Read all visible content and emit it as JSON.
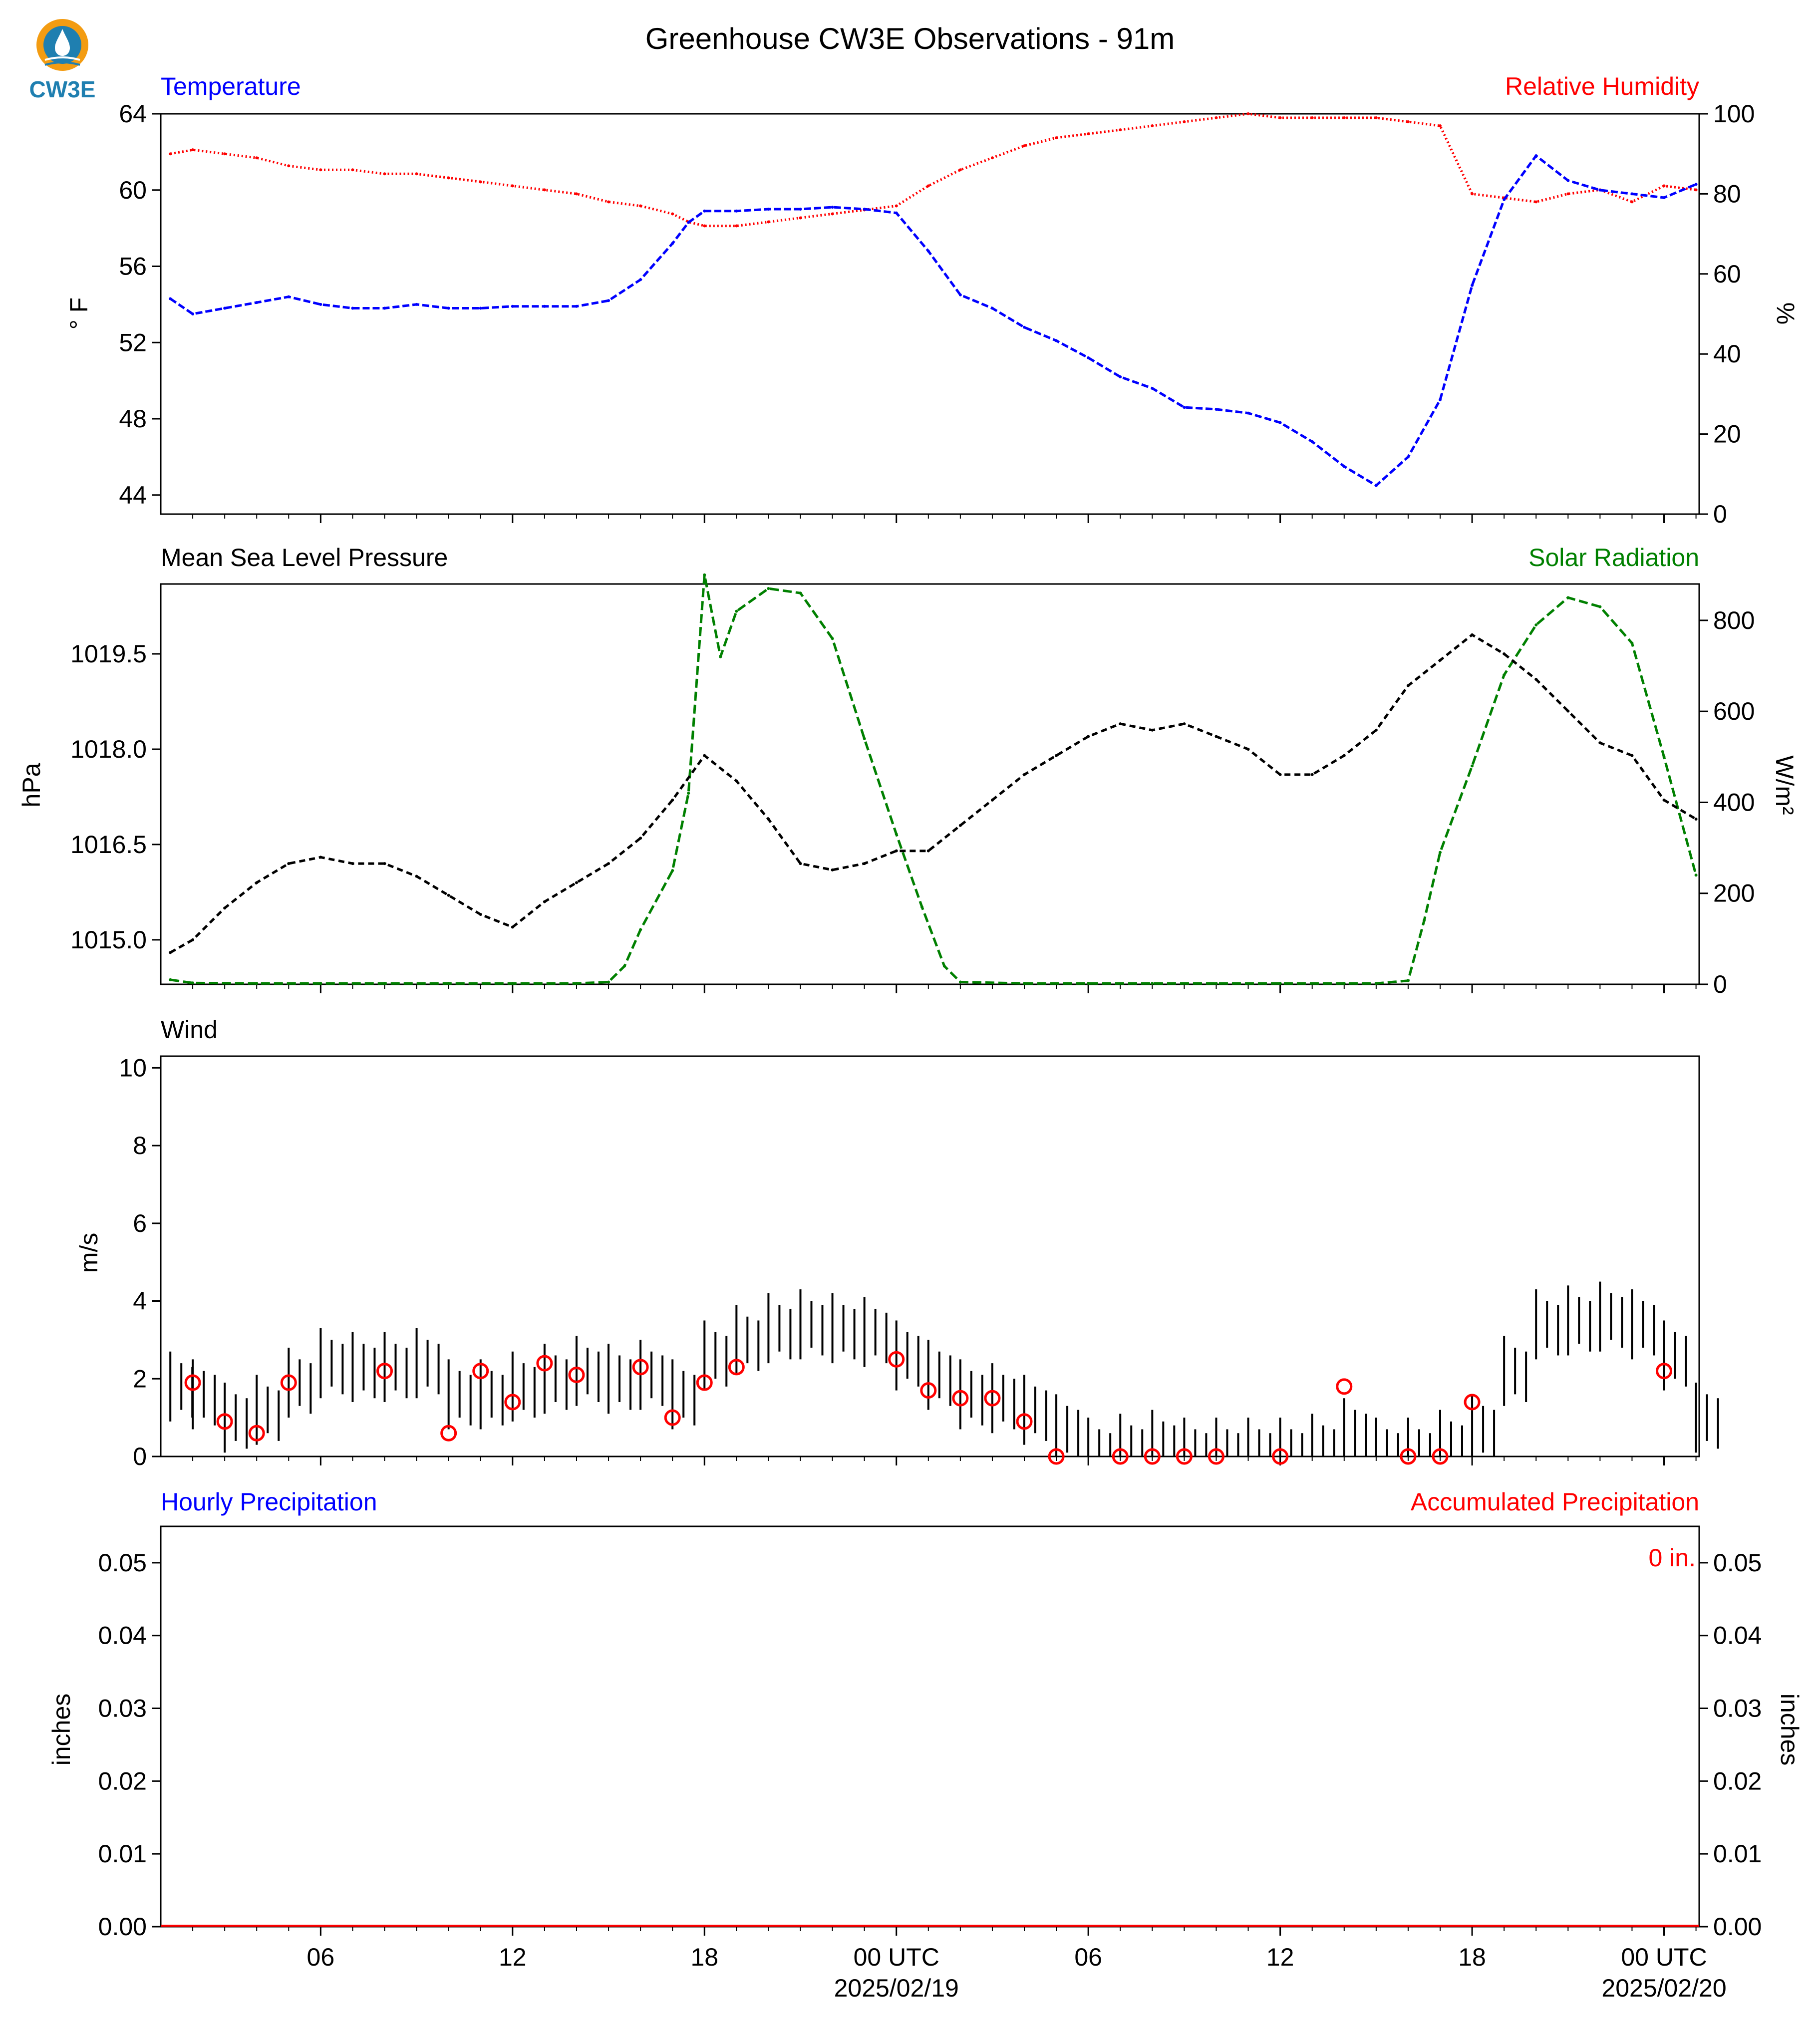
{
  "figure": {
    "title": "Greenhouse CW3E Observations - 91m",
    "logo_text": "CW3E"
  },
  "colors": {
    "temperature": "#0000ff",
    "humidity": "#ff0000",
    "pressure": "#000000",
    "solar": "#008000",
    "wind": "#000000",
    "wind_obs": "#ff0000",
    "accum": "#ff0000"
  },
  "x_axis": {
    "ticks": [
      "06",
      "12",
      "18",
      "00 UTC",
      "06",
      "12",
      "18",
      "00 UTC"
    ],
    "dates": [
      "2025/02/19",
      "2025/02/20"
    ],
    "unit": "hours since 2025-02-18 00 UTC",
    "range": [
      1.0,
      49.1
    ],
    "tick_hours": [
      6,
      12,
      18,
      24,
      30,
      36,
      42,
      48
    ]
  },
  "panels": {
    "temp_rh": {
      "left_label": "Temperature",
      "right_label": "Relative Humidity",
      "left_unit": "° F",
      "right_unit": "%",
      "left_ticks": [
        "44",
        "48",
        "52",
        "56",
        "60",
        "64"
      ],
      "right_ticks": [
        "0",
        "20",
        "40",
        "60",
        "80",
        "100"
      ]
    },
    "pressure_solar": {
      "left_label": "Mean Sea Level Pressure",
      "right_label": "Solar Radiation",
      "left_unit": "hPa",
      "right_unit": "W/m²",
      "left_ticks": [
        "1015.0",
        "1016.5",
        "1018.0",
        "1019.5"
      ],
      "right_ticks": [
        "0",
        "200",
        "400",
        "600",
        "800"
      ]
    },
    "wind": {
      "left_label": "Wind",
      "left_unit": "m/s",
      "left_ticks": [
        "0",
        "2",
        "4",
        "6",
        "8",
        "10"
      ]
    },
    "precip": {
      "left_label": "Hourly Precipitation",
      "right_label": "Accumulated Precipitation",
      "left_unit": "inches",
      "right_unit": "inches",
      "ticks": [
        "0.00",
        "0.01",
        "0.02",
        "0.03",
        "0.04",
        "0.05"
      ],
      "accum_text": "0 in."
    }
  },
  "chart_data": [
    {
      "type": "line",
      "x_unit": "hours since 2025-02-18 00 UTC",
      "series": [
        {
          "name": "Temperature",
          "axis": "left",
          "x": [
            1.3,
            2,
            3,
            4,
            5,
            6,
            7,
            8,
            9,
            10,
            11,
            12,
            13,
            14,
            15,
            16,
            17,
            17.5,
            18,
            19,
            20,
            21,
            22,
            23,
            24,
            25,
            26,
            27,
            28,
            29,
            30,
            31,
            32,
            33,
            34,
            35,
            36,
            37,
            38,
            39,
            40,
            41,
            42,
            43,
            44,
            45,
            46,
            47,
            48,
            49
          ],
          "y": [
            54.3,
            53.5,
            53.8,
            54.1,
            54.4,
            54.0,
            53.8,
            53.8,
            54.0,
            53.8,
            53.8,
            53.9,
            53.9,
            53.9,
            54.2,
            55.3,
            57.2,
            58.3,
            58.9,
            58.9,
            59.0,
            59.0,
            59.1,
            59.0,
            58.8,
            56.8,
            54.5,
            53.8,
            52.8,
            52.1,
            51.2,
            50.2,
            49.6,
            48.6,
            48.5,
            48.3,
            47.8,
            46.8,
            45.5,
            44.5,
            46.0,
            49.0,
            55.0,
            59.5,
            61.8,
            60.5,
            60.0,
            59.8,
            59.6,
            60.3
          ]
        },
        {
          "name": "Relative Humidity",
          "axis": "right",
          "x": [
            1.3,
            2,
            3,
            4,
            5,
            6,
            7,
            8,
            9,
            10,
            11,
            12,
            13,
            14,
            15,
            16,
            17,
            17.5,
            18,
            19,
            20,
            21,
            22,
            23,
            24,
            25,
            26,
            27,
            28,
            29,
            30,
            31,
            32,
            33,
            34,
            35,
            36,
            37,
            38,
            39,
            40,
            41,
            42,
            43,
            44,
            45,
            46,
            47,
            48,
            49
          ],
          "y": [
            90,
            91,
            90,
            89,
            87,
            86,
            86,
            85,
            85,
            84,
            83,
            82,
            81,
            80,
            78,
            77,
            75,
            73,
            72,
            72,
            73,
            74,
            75,
            76,
            77,
            82,
            86,
            89,
            92,
            94,
            95,
            96,
            97,
            98,
            99,
            100,
            99,
            99,
            99,
            99,
            98,
            97,
            80,
            79,
            78,
            80,
            81,
            78,
            82,
            81
          ]
        }
      ],
      "ylim_left": [
        43,
        64
      ],
      "ylim_right": [
        0,
        100
      ]
    },
    {
      "type": "line",
      "x_unit": "hours since 2025-02-18 00 UTC",
      "series": [
        {
          "name": "Mean Sea Level Pressure",
          "axis": "left",
          "x": [
            1.3,
            2,
            3,
            4,
            5,
            6,
            7,
            8,
            9,
            10,
            11,
            12,
            13,
            14,
            15,
            16,
            17,
            18,
            19,
            20,
            21,
            22,
            23,
            24,
            25,
            26,
            27,
            28,
            29,
            30,
            31,
            32,
            33,
            34,
            35,
            36,
            37,
            38,
            39,
            40,
            41,
            42,
            43,
            44,
            45,
            46,
            47,
            48,
            49
          ],
          "y": [
            1014.8,
            1015.0,
            1015.5,
            1015.9,
            1016.2,
            1016.3,
            1016.2,
            1016.2,
            1016.0,
            1015.7,
            1015.4,
            1015.2,
            1015.6,
            1015.9,
            1016.2,
            1016.6,
            1017.2,
            1017.9,
            1017.5,
            1016.9,
            1016.2,
            1016.1,
            1016.2,
            1016.4,
            1016.4,
            1016.8,
            1017.2,
            1017.6,
            1017.9,
            1018.2,
            1018.4,
            1018.3,
            1018.4,
            1018.2,
            1018.0,
            1017.6,
            1017.6,
            1017.9,
            1018.3,
            1019.0,
            1019.4,
            1019.8,
            1019.5,
            1019.1,
            1018.6,
            1018.1,
            1017.9,
            1017.2,
            1016.9
          ]
        },
        {
          "name": "Solar Radiation",
          "axis": "right",
          "x": [
            1.3,
            2,
            4,
            6,
            8,
            10,
            12,
            14,
            15,
            15.5,
            16,
            17,
            17.5,
            18,
            18.5,
            19,
            20,
            21,
            22,
            23,
            24,
            24.8,
            25.5,
            26,
            28,
            30,
            32,
            34,
            36,
            38,
            39,
            40,
            40.5,
            41,
            42,
            43,
            44,
            45,
            46,
            47,
            48,
            49
          ],
          "y": [
            10,
            3,
            2,
            2,
            2,
            2,
            2,
            2,
            5,
            40,
            120,
            250,
            420,
            900,
            720,
            820,
            870,
            860,
            760,
            540,
            330,
            170,
            40,
            5,
            2,
            2,
            2,
            2,
            2,
            2,
            2,
            8,
            140,
            290,
            480,
            680,
            790,
            850,
            830,
            750,
            500,
            240
          ]
        }
      ],
      "ylim_left": [
        1014.3,
        1020.6
      ],
      "ylim_right": [
        0,
        880
      ]
    },
    {
      "type": "line",
      "x_unit": "hours since 2025-02-18 00 UTC",
      "series": [
        {
          "axis": "left",
          "x": [
            1.3,
            2,
            3,
            4,
            5,
            6,
            7,
            8,
            9,
            10,
            11,
            12,
            13,
            14,
            15,
            16,
            17,
            18,
            19,
            20,
            21,
            22,
            23,
            24,
            25,
            26,
            27,
            28,
            29,
            30,
            31,
            32,
            33,
            34,
            35,
            36,
            37,
            38,
            39,
            40,
            41,
            42,
            43,
            44,
            45,
            46,
            47,
            48,
            49
          ],
          "y": [
            1.8,
            1.6,
            1.0,
            1.2,
            1.9,
            2.4,
            2.3,
            2.3,
            2.4,
            1.6,
            1.6,
            1.8,
            2.0,
            2.2,
            2.0,
            2.1,
            1.6,
            2.6,
            3.0,
            3.3,
            3.4,
            3.3,
            3.2,
            2.6,
            2.1,
            1.6,
            1.5,
            1.2,
            0.7,
            0.1,
            0.2,
            0.3,
            0.1,
            0.1,
            0.1,
            0.1,
            0.2,
            0.6,
            0.1,
            0.1,
            0.3,
            0.7,
            2.2,
            3.4,
            3.5,
            3.6,
            3.4,
            2.6,
            1.0
          ]
        },
        {
          "axis": "left",
          "x": [
            2,
            3,
            4,
            5,
            8,
            10,
            11,
            12,
            13,
            14,
            16,
            17,
            18,
            19,
            24,
            25,
            26,
            27,
            28,
            29,
            31,
            32,
            33,
            34,
            36,
            38,
            40,
            41,
            42,
            48
          ],
          "y": [
            1.9,
            0.9,
            0.6,
            1.9,
            2.2,
            0.6,
            2.2,
            1.4,
            2.4,
            2.1,
            2.3,
            1.0,
            1.9,
            2.3,
            2.5,
            1.7,
            1.5,
            1.5,
            0.9,
            0.0,
            0.0,
            0.0,
            0.0,
            0.0,
            0.0,
            1.8,
            0.0,
            0.0,
            1.4,
            2.2
          ]
        }
      ],
      "ylim": [
        0,
        10.3
      ]
    },
    {
      "type": "bar",
      "x_unit": "hours since 2025-02-18 00 UTC",
      "series": [
        {
          "name": "Hourly Precipitation",
          "axis": "left",
          "values": [
            0
          ]
        },
        {
          "name": "Accumulated Precipitation",
          "axis": "right",
          "values": [
            0
          ]
        }
      ],
      "ylim": [
        0,
        0.055
      ]
    }
  ]
}
